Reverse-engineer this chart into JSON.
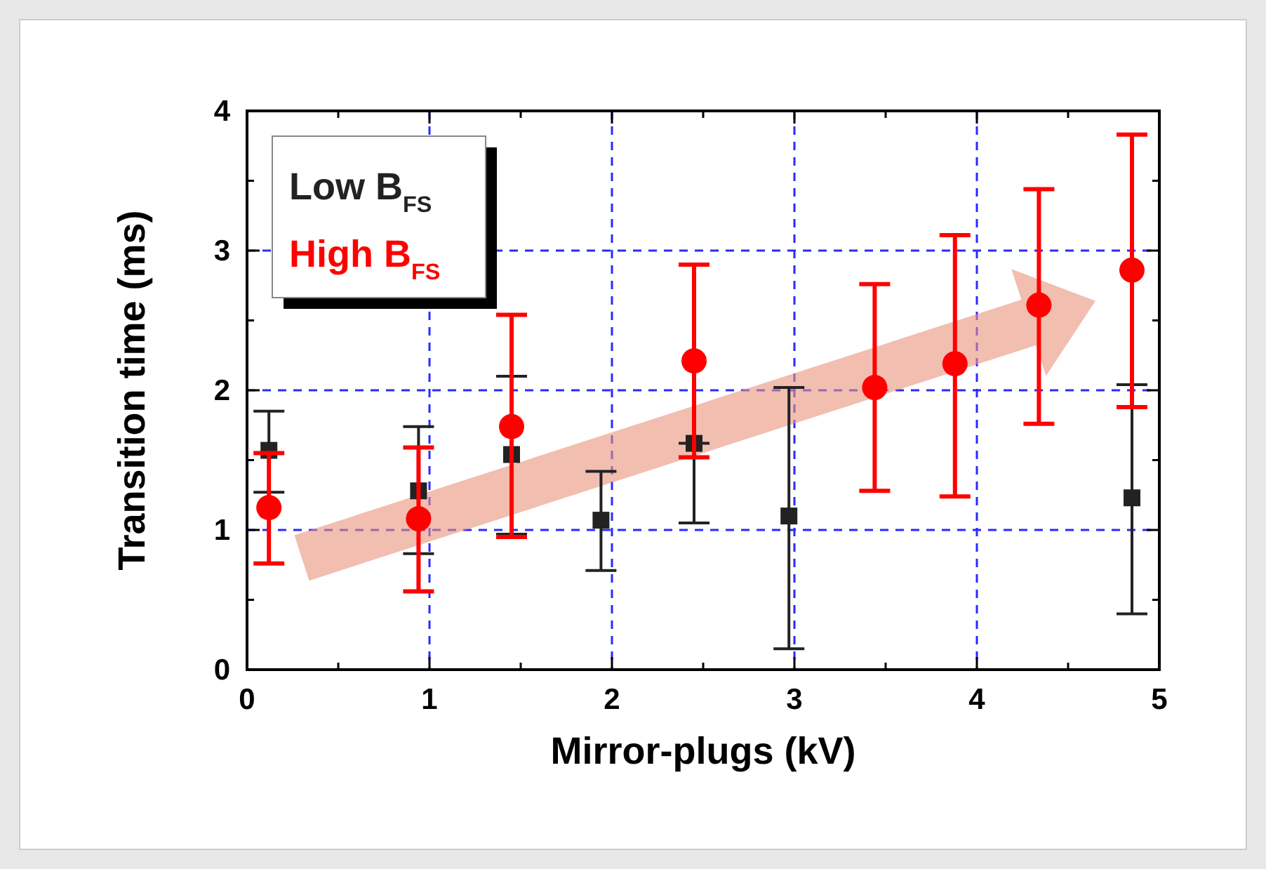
{
  "chart_data": {
    "type": "scatter",
    "xlabel": "Mirror-plugs (kV)",
    "ylabel": "Transition time (ms)",
    "xlim": [
      0,
      5
    ],
    "ylim": [
      0,
      4
    ],
    "xticks": [
      0,
      {
        "value": 0.5,
        "label": null
      },
      1,
      {
        "value": 1.5,
        "label": null
      },
      2,
      {
        "value": 2.5,
        "label": null
      },
      3,
      {
        "value": 3.5,
        "label": null
      },
      4,
      {
        "value": 4.5,
        "label": null
      },
      5
    ],
    "yticks": [
      0,
      {
        "value": 0.5,
        "label": null
      },
      1,
      {
        "value": 1.5,
        "label": null
      },
      2,
      {
        "value": 2.5,
        "label": null
      },
      3,
      {
        "value": 3.5,
        "label": null
      },
      4
    ],
    "grid": true,
    "legend": "top left",
    "series": [
      {
        "name": "Low B$_{FS}$",
        "color": "#222222",
        "marker": "square",
        "x": [
          0.12,
          0.94,
          1.45,
          1.94,
          2.45,
          2.97,
          4.85
        ],
        "values": [
          1.57,
          1.28,
          1.54,
          1.07,
          1.62,
          1.1,
          1.23
        ],
        "errors": [
          [
            1.27,
            1.85
          ],
          [
            0.83,
            1.74
          ],
          [
            0.97,
            2.1
          ],
          [
            0.71,
            1.42
          ],
          [
            1.05,
            1.62
          ],
          [
            0.15,
            2.02
          ],
          [
            0.4,
            2.04
          ]
        ]
      },
      {
        "name": "High B$_{FS}$",
        "color": "#ff0000",
        "marker": "circle",
        "x": [
          0.12,
          0.94,
          1.45,
          2.45,
          3.44,
          3.88,
          4.34,
          4.85
        ],
        "values": [
          1.16,
          1.08,
          1.74,
          2.21,
          2.02,
          2.19,
          2.61,
          2.86
        ],
        "errors": [
          [
            0.76,
            1.55
          ],
          [
            0.56,
            1.59
          ],
          [
            0.95,
            2.54
          ],
          [
            1.52,
            2.9
          ],
          [
            1.28,
            2.76
          ],
          [
            1.24,
            3.11
          ],
          [
            1.76,
            3.44
          ],
          [
            1.88,
            3.83
          ]
        ]
      }
    ]
  }
}
